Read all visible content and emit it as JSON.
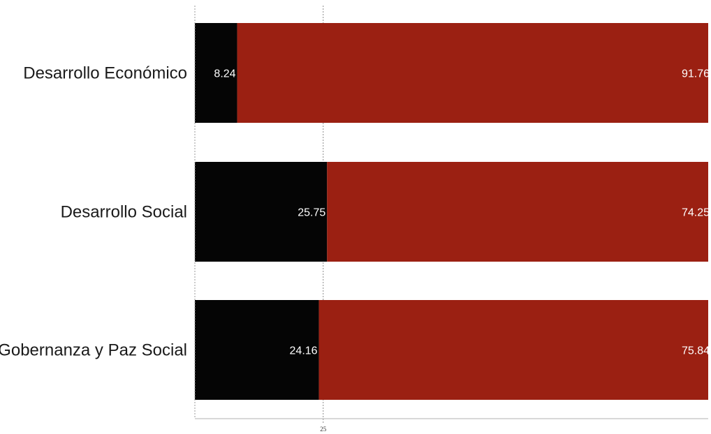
{
  "chart_data": {
    "type": "bar",
    "orientation": "horizontal",
    "stacked": true,
    "categories": [
      "Desarrollo Económico",
      "Desarrollo Social",
      "Gobernanza y Paz Social"
    ],
    "series": [
      {
        "values": [
          8.24,
          25.75,
          24.16
        ],
        "color": "#050505"
      },
      {
        "values": [
          91.76,
          74.25,
          75.84
        ],
        "color": "#9b2012"
      }
    ],
    "xlim": [
      0,
      100
    ],
    "x_ticks": [
      25
    ],
    "grid": "vertical line at 25"
  }
}
